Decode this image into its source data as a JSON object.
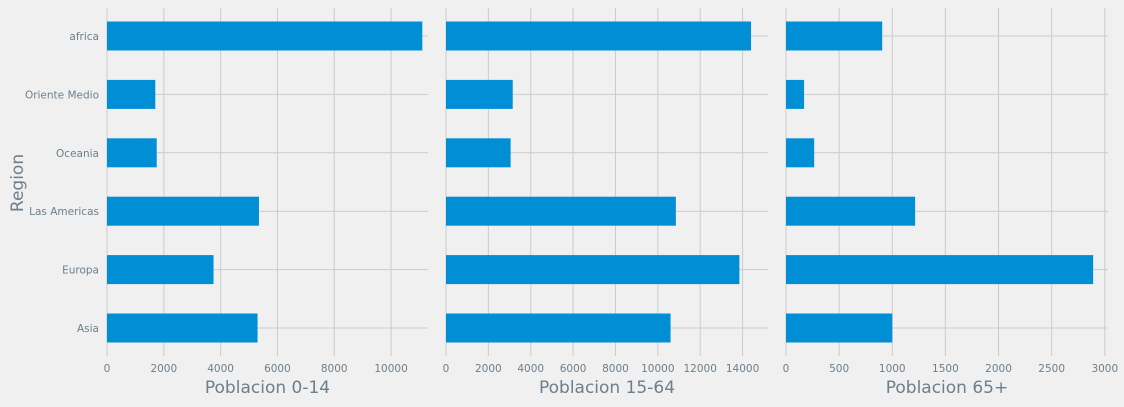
{
  "figure": {
    "ylabel": "Region",
    "background": "#f0f0f0",
    "bar_color": "#008fd5",
    "grid_color": "#cbcbcb",
    "text_color": "#6d7f8b"
  },
  "chart_data": [
    {
      "type": "bar",
      "orientation": "horizontal",
      "title": "",
      "xlabel": "Poblacion 0-14",
      "ylabel": "Region",
      "categories": [
        "africa",
        "Oriente Medio",
        "Oceania",
        "Las Americas",
        "Europa",
        "Asia"
      ],
      "values": [
        11100,
        1700,
        1750,
        5350,
        3750,
        5300
      ],
      "xlim": [
        0,
        11300
      ],
      "xticks": [
        0,
        2000,
        4000,
        6000,
        8000,
        10000
      ],
      "grid": true,
      "show_yticklabels": true
    },
    {
      "type": "bar",
      "orientation": "horizontal",
      "title": "",
      "xlabel": "Poblacion 15-64",
      "ylabel": "",
      "categories": [
        "africa",
        "Oriente Medio",
        "Oceania",
        "Las Americas",
        "Europa",
        "Asia"
      ],
      "values": [
        14400,
        3150,
        3050,
        10850,
        13850,
        10600
      ],
      "xlim": [
        0,
        15200
      ],
      "xticks": [
        0,
        2000,
        4000,
        6000,
        8000,
        10000,
        12000,
        14000
      ],
      "grid": true,
      "show_yticklabels": false
    },
    {
      "type": "bar",
      "orientation": "horizontal",
      "title": "",
      "xlabel": "Poblacion 65+",
      "ylabel": "",
      "categories": [
        "africa",
        "Oriente Medio",
        "Oceania",
        "Las Americas",
        "Europa",
        "Asia"
      ],
      "values": [
        905,
        170,
        265,
        1215,
        2890,
        1000
      ],
      "xlim": [
        0,
        3030
      ],
      "xticks": [
        0,
        500,
        1000,
        1500,
        2000,
        2500,
        3000
      ],
      "grid": true,
      "show_yticklabels": false
    }
  ]
}
